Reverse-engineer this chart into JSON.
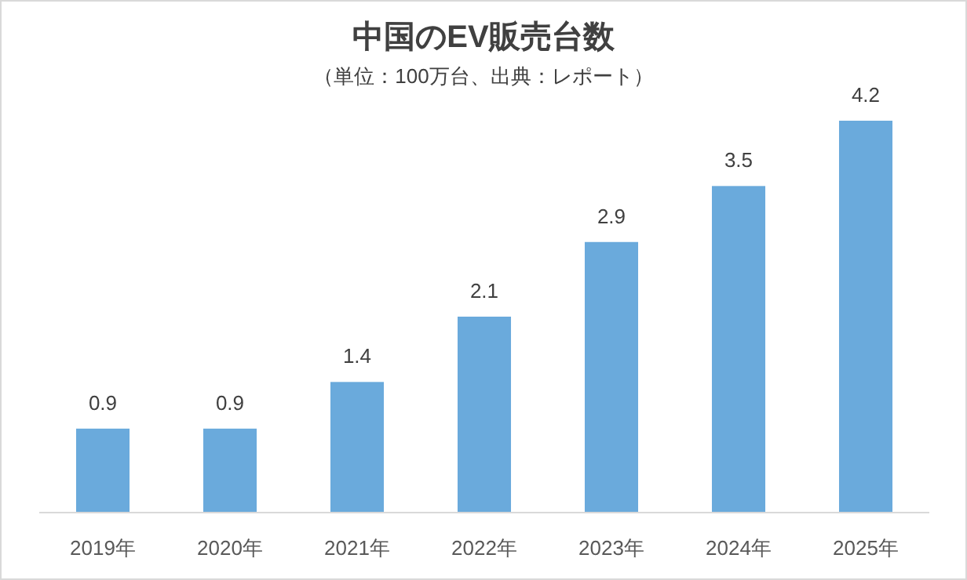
{
  "chart_data": {
    "type": "bar",
    "title": "中国のEV販売台数",
    "subtitle": "（単位：100万台、出典：レポート）",
    "categories": [
      "2019年",
      "2020年",
      "2021年",
      "2022年",
      "2023年",
      "2024年",
      "2025年"
    ],
    "values": [
      0.9,
      0.9,
      1.4,
      2.1,
      2.9,
      3.5,
      4.2
    ],
    "color": "#6aaadc",
    "data_labels": true
  }
}
